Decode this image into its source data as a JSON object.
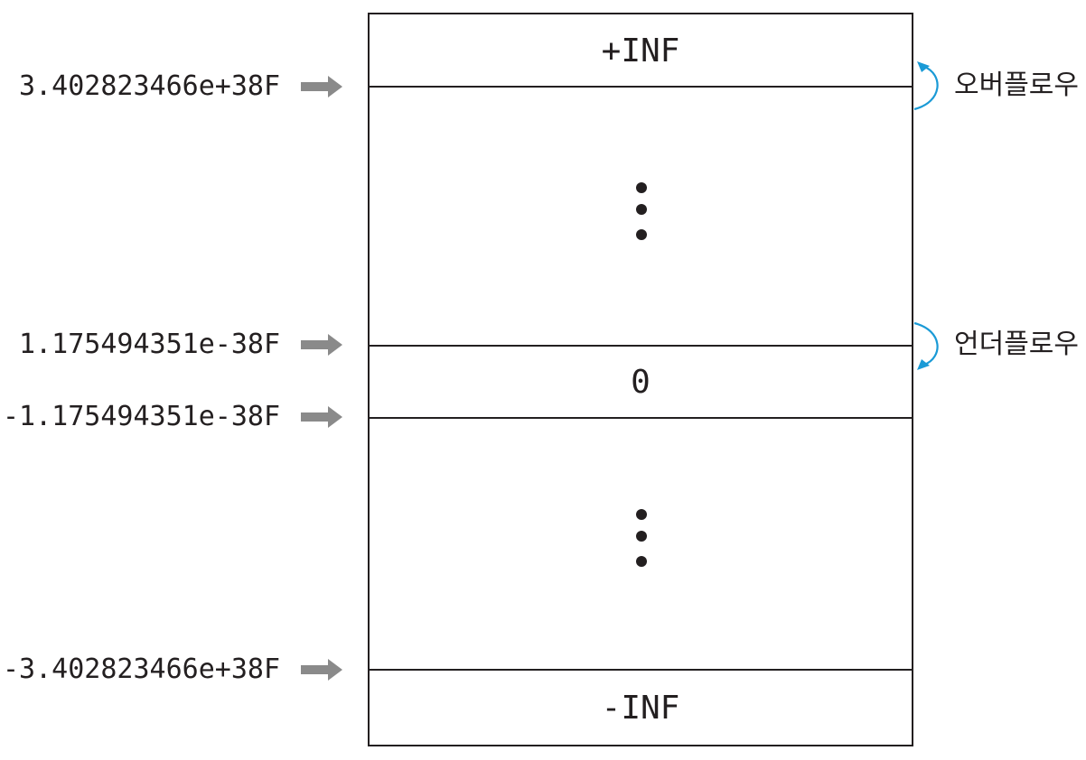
{
  "regions": {
    "top": "+INF",
    "middle": "0",
    "bottom": "-INF"
  },
  "boundary_values": {
    "max_positive": "3.402823466e+38F",
    "min_positive": "1.175494351e-38F",
    "min_negative": "-1.175494351e-38F",
    "max_negative": "-3.402823466e+38F"
  },
  "annotations": {
    "overflow": "오버플로우",
    "underflow": "언더플로우"
  },
  "colors": {
    "line": "#231f20",
    "pointer_arrow": "#8a8a8a",
    "curve_arrow": "#1a9ad6"
  }
}
